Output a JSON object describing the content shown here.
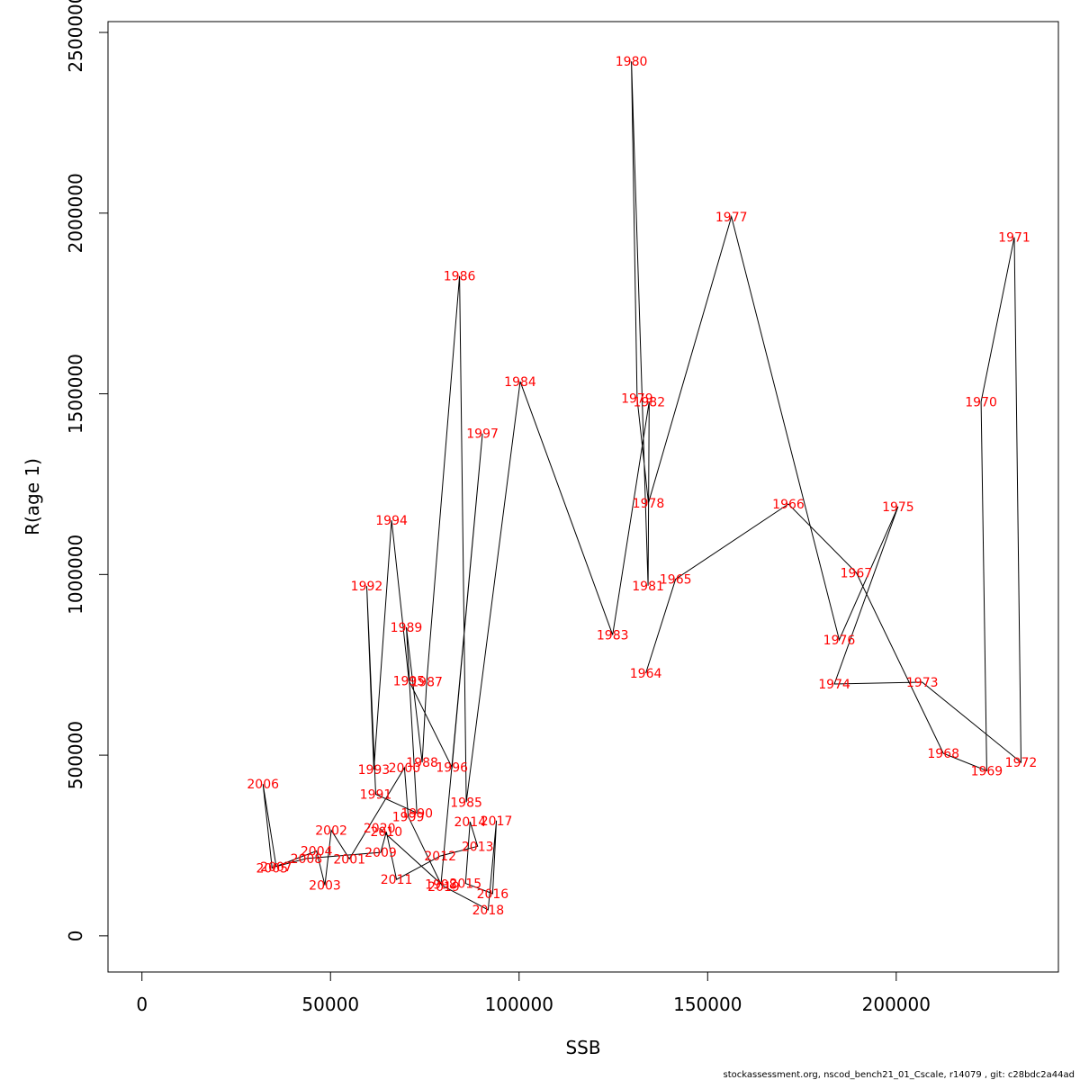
{
  "chart_data": {
    "type": "line",
    "xlabel": "SSB",
    "ylabel": "R(age 1)",
    "xlim": [
      -9000,
      243000
    ],
    "ylim": [
      -100000,
      2530000
    ],
    "xticks": [
      0,
      50000,
      100000,
      150000,
      200000
    ],
    "yticks": [
      0,
      500000,
      1000000,
      1500000,
      2000000,
      2500000
    ],
    "xtick_labels": [
      "0",
      "50000",
      "100000",
      "150000",
      "200000"
    ],
    "ytick_labels": [
      "0",
      "500000",
      "1000000",
      "1500000",
      "2000000",
      "2500000"
    ],
    "grid": false,
    "legend": "none",
    "label_color": "#ff0000",
    "line_color": "#000000",
    "points": [
      {
        "year": "1964",
        "x": 133600,
        "y": 727000
      },
      {
        "year": "1965",
        "x": 141500,
        "y": 987000
      },
      {
        "year": "1966",
        "x": 171400,
        "y": 1195000
      },
      {
        "year": "1967",
        "x": 189400,
        "y": 1005000
      },
      {
        "year": "1968",
        "x": 212500,
        "y": 505000
      },
      {
        "year": "1969",
        "x": 224000,
        "y": 457000
      },
      {
        "year": "1970",
        "x": 222500,
        "y": 1478000
      },
      {
        "year": "1971",
        "x": 231300,
        "y": 1933000
      },
      {
        "year": "1972",
        "x": 233100,
        "y": 480000
      },
      {
        "year": "1973",
        "x": 206900,
        "y": 702000
      },
      {
        "year": "1974",
        "x": 183600,
        "y": 697000
      },
      {
        "year": "1975",
        "x": 200500,
        "y": 1188000
      },
      {
        "year": "1976",
        "x": 184900,
        "y": 819000
      },
      {
        "year": "1977",
        "x": 156300,
        "y": 1990000
      },
      {
        "year": "1978",
        "x": 134300,
        "y": 1198000
      },
      {
        "year": "1979",
        "x": 131300,
        "y": 1488000
      },
      {
        "year": "1980",
        "x": 129800,
        "y": 2420000
      },
      {
        "year": "1981",
        "x": 134200,
        "y": 969000
      },
      {
        "year": "1982",
        "x": 134500,
        "y": 1478000
      },
      {
        "year": "1983",
        "x": 124800,
        "y": 833000
      },
      {
        "year": "1984",
        "x": 100300,
        "y": 1534000
      },
      {
        "year": "1985",
        "x": 86000,
        "y": 370000
      },
      {
        "year": "1986",
        "x": 84200,
        "y": 1826000
      },
      {
        "year": "1987",
        "x": 75500,
        "y": 703000
      },
      {
        "year": "1988",
        "x": 74300,
        "y": 480000
      },
      {
        "year": "1989",
        "x": 70100,
        "y": 854000
      },
      {
        "year": "1990",
        "x": 72900,
        "y": 340000
      },
      {
        "year": "1991",
        "x": 62000,
        "y": 392000
      },
      {
        "year": "1992",
        "x": 59600,
        "y": 968000
      },
      {
        "year": "1993",
        "x": 61500,
        "y": 460000
      },
      {
        "year": "1994",
        "x": 66200,
        "y": 1150000
      },
      {
        "year": "1995",
        "x": 70800,
        "y": 706000
      },
      {
        "year": "1996",
        "x": 82200,
        "y": 466000
      },
      {
        "year": "1997",
        "x": 90300,
        "y": 1390000
      },
      {
        "year": "1998",
        "x": 79300,
        "y": 143000
      },
      {
        "year": "1999",
        "x": 70600,
        "y": 330000
      },
      {
        "year": "2000",
        "x": 69600,
        "y": 465000
      },
      {
        "year": "2001",
        "x": 55000,
        "y": 213000
      },
      {
        "year": "2002",
        "x": 50200,
        "y": 292000
      },
      {
        "year": "2003",
        "x": 48500,
        "y": 140000
      },
      {
        "year": "2004",
        "x": 46300,
        "y": 235000
      },
      {
        "year": "2005",
        "x": 34500,
        "y": 188000
      },
      {
        "year": "2006",
        "x": 32100,
        "y": 420000
      },
      {
        "year": "2007",
        "x": 35600,
        "y": 192000
      },
      {
        "year": "2008",
        "x": 43600,
        "y": 214000
      },
      {
        "year": "2009",
        "x": 63300,
        "y": 231000
      },
      {
        "year": "2010",
        "x": 64800,
        "y": 288000
      },
      {
        "year": "2011",
        "x": 67500,
        "y": 156000
      },
      {
        "year": "2012",
        "x": 79100,
        "y": 221000
      },
      {
        "year": "2013",
        "x": 89000,
        "y": 248000
      },
      {
        "year": "2014",
        "x": 87000,
        "y": 316000
      },
      {
        "year": "2015",
        "x": 85800,
        "y": 145000
      },
      {
        "year": "2016",
        "x": 93000,
        "y": 117000
      },
      {
        "year": "2017",
        "x": 94000,
        "y": 319000
      },
      {
        "year": "2018",
        "x": 91800,
        "y": 72000
      },
      {
        "year": "2019",
        "x": 80000,
        "y": 137000
      },
      {
        "year": "2020",
        "x": 63000,
        "y": 298000
      }
    ]
  },
  "footer": "stockassessment.org, nscod_bench21_01_Cscale, r14079 , git: c28bdc2a44ad"
}
